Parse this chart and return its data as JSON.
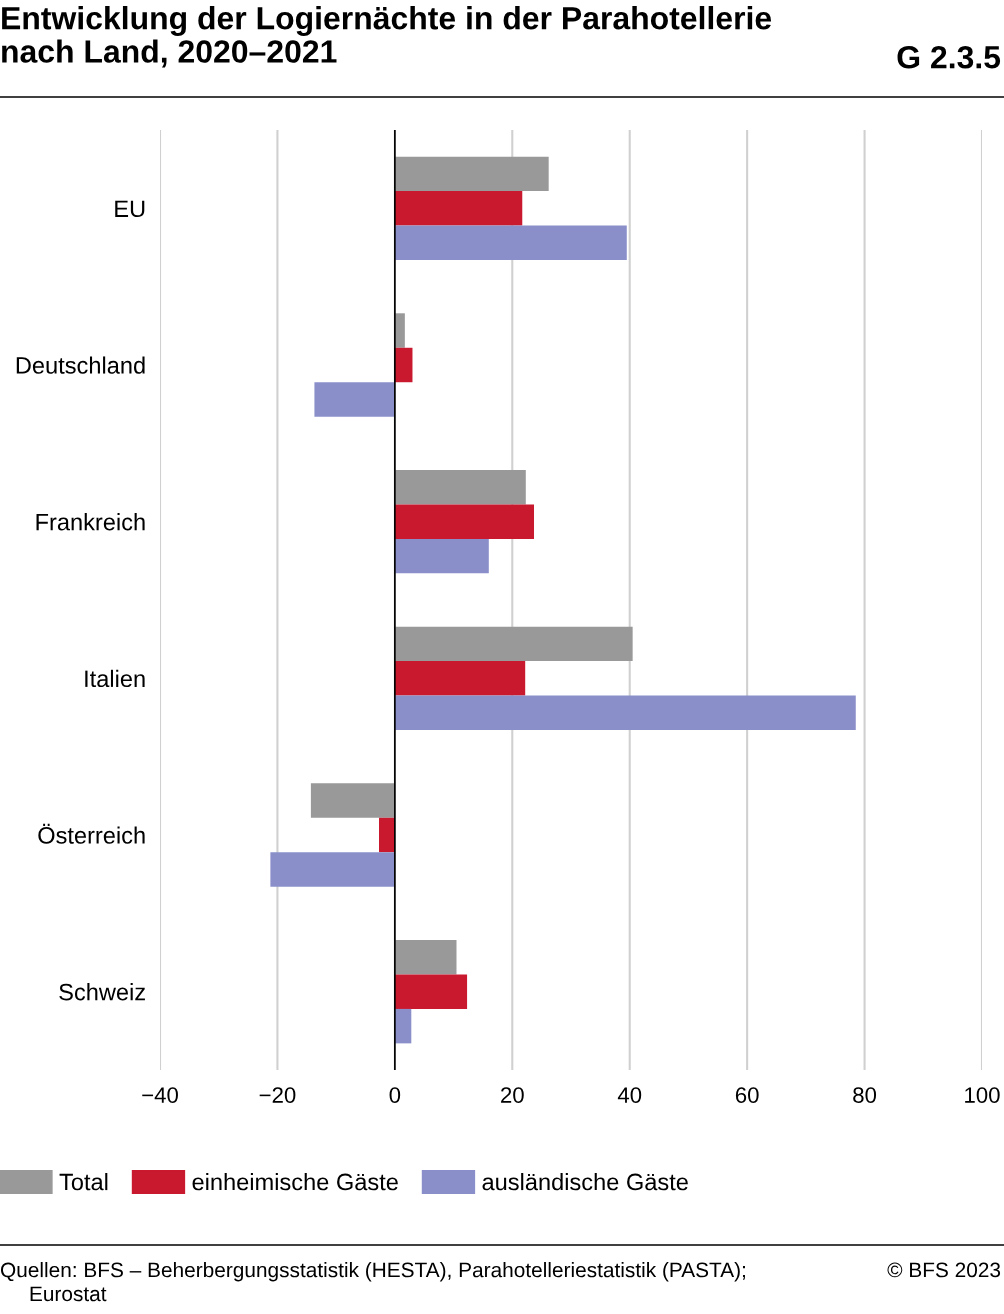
{
  "chart_data": {
    "type": "bar",
    "orientation": "horizontal",
    "title": "Entwicklung der Logiernächte in der Parahotellerie\nnach Land, 2020–2021",
    "categories": [
      "EU",
      "Deutschland",
      "Frankreich",
      "Italien",
      "Österreich",
      "Schweiz"
    ],
    "series": [
      {
        "name": "Total",
        "color": "#999999",
        "values": [
          26.2,
          1.7,
          22.3,
          40.5,
          -14.3,
          10.5
        ]
      },
      {
        "name": "einheimische Gäste",
        "color": "#c8192e",
        "values": [
          21.7,
          3.0,
          23.7,
          22.2,
          -2.7,
          12.3
        ]
      },
      {
        "name": "ausländische Gäste",
        "color": "#8a8fca",
        "values": [
          39.5,
          -13.7,
          16.0,
          78.5,
          -21.2,
          2.8
        ]
      }
    ],
    "xlim": [
      -40,
      100
    ],
    "xticks": [
      {
        "value": -40,
        "label": "−40"
      },
      {
        "value": -20,
        "label": "−20"
      },
      0,
      20,
      40,
      60,
      80,
      100
    ],
    "grid": "x",
    "legend": "bottom",
    "ref_lines": [
      {
        "axis": "x",
        "value": 0,
        "label": null,
        "color": "#000000"
      }
    ],
    "annotations": [
      "G 2.3.5",
      "Quellen: BFS – Beherbergungsstatistik (HESTA), Parahotelleriestatistik (PASTA);\n     Eurostat",
      "© BFS 2023"
    ]
  }
}
